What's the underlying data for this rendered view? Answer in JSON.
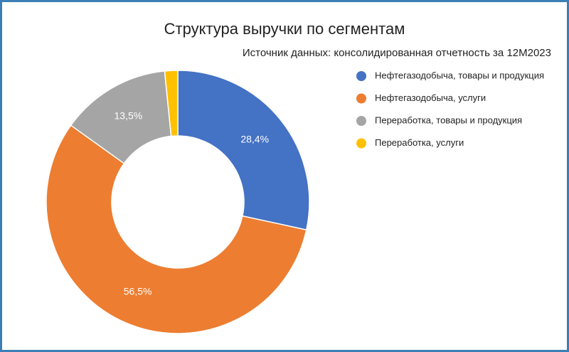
{
  "chart_data": {
    "type": "donut",
    "title": "Структура выручки по сегментам",
    "subtitle": "Источник данных: консолидированная отчетность за 12M2023",
    "series": [
      {
        "name": "Нефтегазодобыча, товары и продукция",
        "color": "#4472c4",
        "values": [
          28.4
        ],
        "value_labels": [
          "28,4%"
        ]
      },
      {
        "name": "Нефтегазодобыча, услуги",
        "color": "#ed7d31",
        "values": [
          56.5
        ],
        "value_labels": [
          "56,5%"
        ]
      },
      {
        "name": "Переработка, товары и продукция",
        "color": "#a5a5a5",
        "values": [
          13.5
        ],
        "value_labels": [
          "13,5%"
        ]
      },
      {
        "name": "Переработка, услуги",
        "color": "#ffc000",
        "values": [
          1.6
        ]
      }
    ],
    "legend": "right"
  }
}
